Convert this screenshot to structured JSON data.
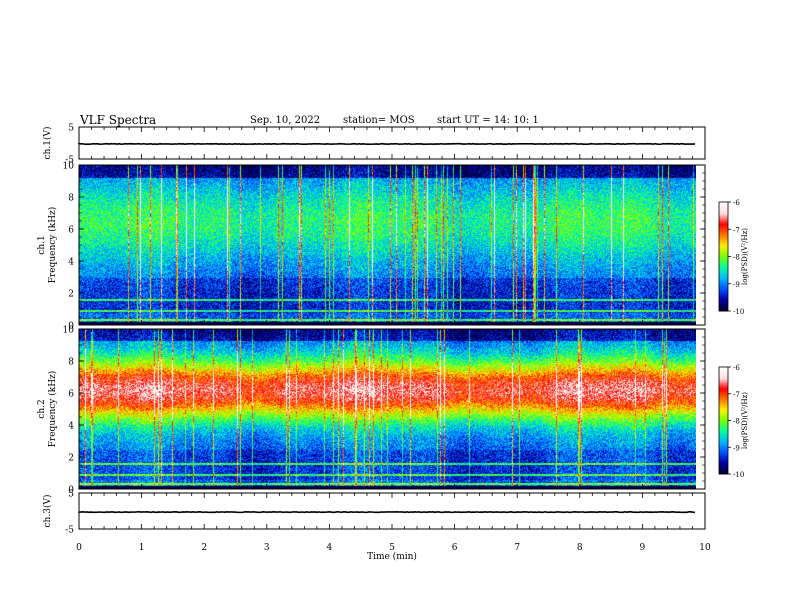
{
  "header": {
    "title": "VLF Spectra",
    "date": "Sep. 10, 2022",
    "station": "station= MOS",
    "start": "start  UT  =   14: 10: 1"
  },
  "chart_data": [
    {
      "type": "line",
      "panel": "ch1-waveform",
      "ylabel": "ch.1(V)",
      "y_ticks": [
        "5",
        "-5"
      ],
      "ylim": [
        -5,
        5
      ],
      "xlim": [
        0,
        10
      ],
      "series": [
        {
          "values": [
            -0.3,
            -0.3
          ]
        }
      ],
      "color": "#000000"
    },
    {
      "type": "heatmap",
      "panel": "ch1-spectrogram",
      "ylabel": "ch.1\nFrequency (kHz)",
      "y_ticks": [
        "0",
        "2",
        "4",
        "6",
        "8",
        "10"
      ],
      "ylim": [
        0,
        10
      ],
      "xlim": [
        0,
        9.85
      ],
      "colorbar": {
        "label": "log(PSD)(V²/Hz)",
        "ticks": [
          "-6",
          "-7",
          "-8",
          "-9",
          "-10"
        ],
        "range": [
          -10,
          -6
        ]
      },
      "profile_note_free": true,
      "band_center_khz": 6,
      "mean_level_quiet": -9.2,
      "mean_level_band": -8.8
    },
    {
      "type": "heatmap",
      "panel": "ch2-spectrogram",
      "ylabel": "ch.2\nFrequency (kHz)",
      "y_ticks": [
        "0",
        "2",
        "4",
        "6",
        "8",
        "10"
      ],
      "ylim": [
        0,
        10
      ],
      "xlim": [
        0,
        9.85
      ],
      "colorbar": {
        "label": "log(PSD)(V²/Hz)",
        "ticks": [
          "-6",
          "-7",
          "-8",
          "-9",
          "-10"
        ],
        "range": [
          -10,
          -6
        ]
      },
      "band_center_khz": 6.2,
      "mean_level_band": -6.6
    },
    {
      "type": "line",
      "panel": "ch3-waveform",
      "ylabel": "ch.3(V)",
      "y_ticks": [
        "5",
        "-5"
      ],
      "ylim": [
        -5,
        5
      ],
      "xlim": [
        0,
        10
      ],
      "series": [
        {
          "values": [
            -0.3,
            -0.3
          ]
        }
      ],
      "color": "#000000"
    }
  ],
  "x_axis": {
    "label": "Time  (min)",
    "ticks": [
      "0",
      "1",
      "2",
      "3",
      "4",
      "5",
      "6",
      "7",
      "8",
      "9",
      "10"
    ],
    "range": [
      0,
      10
    ]
  },
  "colormap": [
    "#000033",
    "#0000aa",
    "#0055ff",
    "#00bbff",
    "#00ff99",
    "#77ff00",
    "#ffee00",
    "#ff7700",
    "#ff0000",
    "#ffdddd",
    "#ffffff"
  ]
}
